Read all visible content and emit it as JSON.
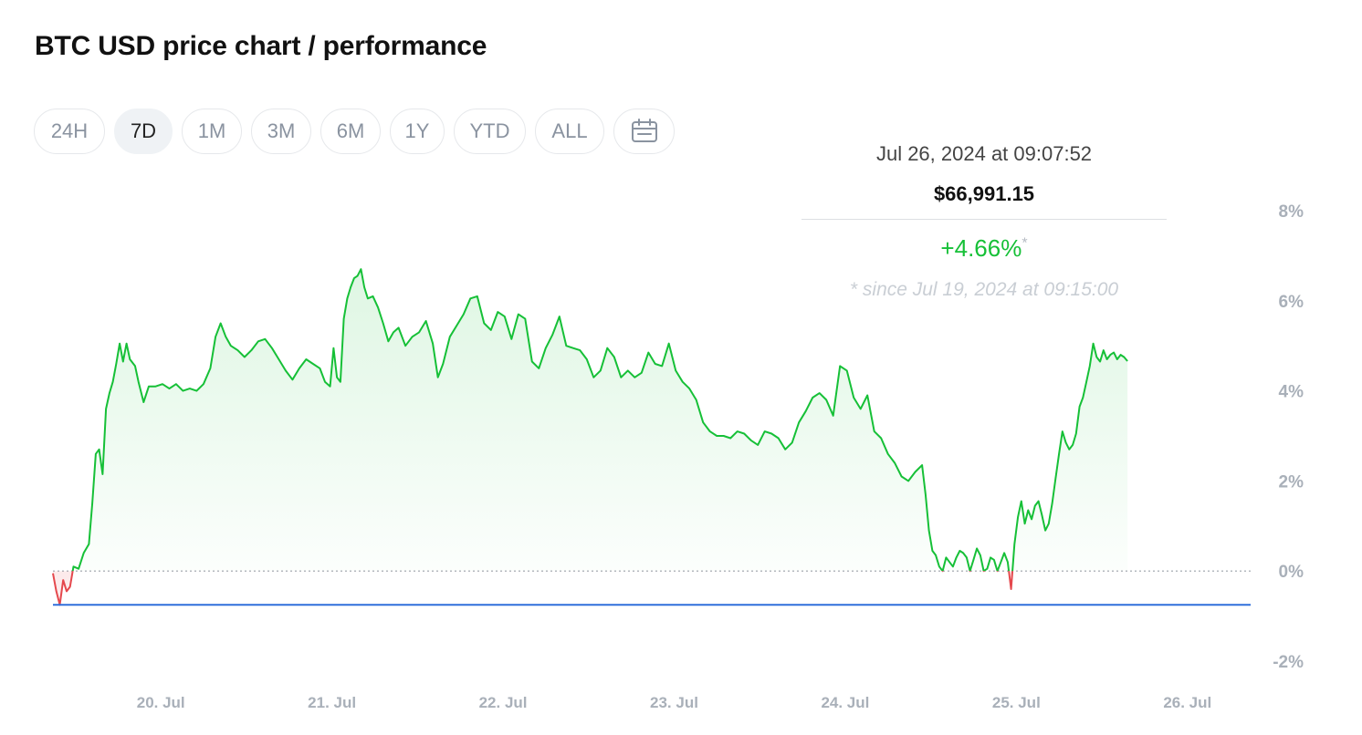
{
  "page": {
    "title": "BTC USD price chart / performance"
  },
  "range_buttons": [
    {
      "label": "24H",
      "active": false
    },
    {
      "label": "7D",
      "active": true
    },
    {
      "label": "1M",
      "active": false
    },
    {
      "label": "3M",
      "active": false
    },
    {
      "label": "6M",
      "active": false
    },
    {
      "label": "1Y",
      "active": false
    },
    {
      "label": "YTD",
      "active": false
    },
    {
      "label": "ALL",
      "active": false
    }
  ],
  "calendar_icon": "calendar-icon",
  "tooltip": {
    "date": "Jul 26, 2024 at 09:07:52",
    "price": "$66,991.15",
    "change": "+4.66%",
    "change_marker": "*",
    "since": "* since Jul 19, 2024 at 09:15:00"
  },
  "colors": {
    "up": "#16c037",
    "down": "#e5484d",
    "baseline": "#2f6fdb",
    "active_bg": "#eff2f5"
  },
  "chart_data": {
    "type": "line",
    "title": "BTC USD price chart / performance",
    "y_unit": "%",
    "ylim": [
      -2,
      8
    ],
    "y_ticks": [
      {
        "value": 8,
        "label": "8%"
      },
      {
        "value": 6,
        "label": "6%"
      },
      {
        "value": 4,
        "label": "4%"
      },
      {
        "value": 2,
        "label": "2%"
      },
      {
        "value": 0,
        "label": "0%"
      },
      {
        "value": -2,
        "label": "-2%"
      }
    ],
    "x_ticks": [
      "20. Jul",
      "21. Jul",
      "22. Jul",
      "23. Jul",
      "24. Jul",
      "25. Jul",
      "26. Jul"
    ],
    "xlim_days": [
      19.38,
      26.38
    ],
    "baseline_value": -0.75,
    "series": [
      {
        "values": [
          [
            19.38,
            -0.05
          ],
          [
            19.4,
            -0.45
          ],
          [
            19.42,
            -0.75
          ],
          [
            19.44,
            -0.2
          ],
          [
            19.46,
            -0.45
          ],
          [
            19.48,
            -0.35
          ],
          [
            19.5,
            0.1
          ],
          [
            19.53,
            0.05
          ],
          [
            19.56,
            0.4
          ],
          [
            19.59,
            0.6
          ],
          [
            19.61,
            1.5
          ],
          [
            19.63,
            2.6
          ],
          [
            19.65,
            2.7
          ],
          [
            19.67,
            2.15
          ],
          [
            19.69,
            3.6
          ],
          [
            19.71,
            3.95
          ],
          [
            19.73,
            4.2
          ],
          [
            19.75,
            4.6
          ],
          [
            19.77,
            5.05
          ],
          [
            19.79,
            4.65
          ],
          [
            19.81,
            5.05
          ],
          [
            19.83,
            4.7
          ],
          [
            19.86,
            4.55
          ],
          [
            19.88,
            4.2
          ],
          [
            19.91,
            3.75
          ],
          [
            19.94,
            4.1
          ],
          [
            19.98,
            4.1
          ],
          [
            20.02,
            4.15
          ],
          [
            20.06,
            4.05
          ],
          [
            20.1,
            4.15
          ],
          [
            20.14,
            4.0
          ],
          [
            20.18,
            4.05
          ],
          [
            20.22,
            4.0
          ],
          [
            20.26,
            4.15
          ],
          [
            20.3,
            4.5
          ],
          [
            20.33,
            5.2
          ],
          [
            20.36,
            5.5
          ],
          [
            20.39,
            5.2
          ],
          [
            20.42,
            5.0
          ],
          [
            20.46,
            4.9
          ],
          [
            20.5,
            4.75
          ],
          [
            20.54,
            4.9
          ],
          [
            20.58,
            5.1
          ],
          [
            20.62,
            5.15
          ],
          [
            20.66,
            4.95
          ],
          [
            20.7,
            4.7
          ],
          [
            20.74,
            4.45
          ],
          [
            20.78,
            4.25
          ],
          [
            20.82,
            4.5
          ],
          [
            20.86,
            4.7
          ],
          [
            20.9,
            4.6
          ],
          [
            20.94,
            4.5
          ],
          [
            20.97,
            4.2
          ],
          [
            21.0,
            4.1
          ],
          [
            21.02,
            4.95
          ],
          [
            21.04,
            4.3
          ],
          [
            21.06,
            4.2
          ],
          [
            21.08,
            5.6
          ],
          [
            21.1,
            6.05
          ],
          [
            21.12,
            6.3
          ],
          [
            21.14,
            6.5
          ],
          [
            21.16,
            6.55
          ],
          [
            21.18,
            6.7
          ],
          [
            21.2,
            6.3
          ],
          [
            21.22,
            6.05
          ],
          [
            21.25,
            6.1
          ],
          [
            21.28,
            5.85
          ],
          [
            21.31,
            5.5
          ],
          [
            21.34,
            5.1
          ],
          [
            21.37,
            5.3
          ],
          [
            21.4,
            5.4
          ],
          [
            21.44,
            5.0
          ],
          [
            21.48,
            5.2
          ],
          [
            21.52,
            5.3
          ],
          [
            21.56,
            5.55
          ],
          [
            21.6,
            5.05
          ],
          [
            21.63,
            4.3
          ],
          [
            21.66,
            4.6
          ],
          [
            21.7,
            5.2
          ],
          [
            21.74,
            5.45
          ],
          [
            21.78,
            5.7
          ],
          [
            21.82,
            6.05
          ],
          [
            21.86,
            6.1
          ],
          [
            21.9,
            5.5
          ],
          [
            21.94,
            5.35
          ],
          [
            21.98,
            5.75
          ],
          [
            22.02,
            5.65
          ],
          [
            22.06,
            5.15
          ],
          [
            22.1,
            5.7
          ],
          [
            22.14,
            5.6
          ],
          [
            22.18,
            4.65
          ],
          [
            22.22,
            4.5
          ],
          [
            22.26,
            4.95
          ],
          [
            22.3,
            5.25
          ],
          [
            22.34,
            5.65
          ],
          [
            22.38,
            5.0
          ],
          [
            22.42,
            4.95
          ],
          [
            22.46,
            4.9
          ],
          [
            22.5,
            4.7
          ],
          [
            22.54,
            4.3
          ],
          [
            22.58,
            4.45
          ],
          [
            22.62,
            4.95
          ],
          [
            22.66,
            4.75
          ],
          [
            22.7,
            4.3
          ],
          [
            22.74,
            4.45
          ],
          [
            22.78,
            4.3
          ],
          [
            22.82,
            4.4
          ],
          [
            22.86,
            4.85
          ],
          [
            22.9,
            4.6
          ],
          [
            22.94,
            4.55
          ],
          [
            22.98,
            5.05
          ],
          [
            23.02,
            4.45
          ],
          [
            23.06,
            4.2
          ],
          [
            23.1,
            4.05
          ],
          [
            23.14,
            3.8
          ],
          [
            23.18,
            3.3
          ],
          [
            23.22,
            3.1
          ],
          [
            23.26,
            3.0
          ],
          [
            23.3,
            3.0
          ],
          [
            23.34,
            2.95
          ],
          [
            23.38,
            3.1
          ],
          [
            23.42,
            3.05
          ],
          [
            23.46,
            2.9
          ],
          [
            23.5,
            2.8
          ],
          [
            23.54,
            3.1
          ],
          [
            23.58,
            3.05
          ],
          [
            23.62,
            2.95
          ],
          [
            23.66,
            2.7
          ],
          [
            23.7,
            2.85
          ],
          [
            23.74,
            3.3
          ],
          [
            23.78,
            3.55
          ],
          [
            23.82,
            3.85
          ],
          [
            23.86,
            3.95
          ],
          [
            23.9,
            3.8
          ],
          [
            23.94,
            3.45
          ],
          [
            23.98,
            4.55
          ],
          [
            24.02,
            4.45
          ],
          [
            24.06,
            3.85
          ],
          [
            24.1,
            3.6
          ],
          [
            24.14,
            3.9
          ],
          [
            24.18,
            3.1
          ],
          [
            24.22,
            2.95
          ],
          [
            24.26,
            2.6
          ],
          [
            24.3,
            2.4
          ],
          [
            24.34,
            2.1
          ],
          [
            24.38,
            2.0
          ],
          [
            24.42,
            2.2
          ],
          [
            24.46,
            2.35
          ],
          [
            24.48,
            1.7
          ],
          [
            24.5,
            0.9
          ],
          [
            24.52,
            0.45
          ],
          [
            24.54,
            0.35
          ],
          [
            24.56,
            0.1
          ],
          [
            24.58,
            0.0
          ],
          [
            24.6,
            0.3
          ],
          [
            24.62,
            0.2
          ],
          [
            24.64,
            0.1
          ],
          [
            24.66,
            0.3
          ],
          [
            24.68,
            0.45
          ],
          [
            24.7,
            0.4
          ],
          [
            24.72,
            0.3
          ],
          [
            24.74,
            0.0
          ],
          [
            24.76,
            0.25
          ],
          [
            24.78,
            0.5
          ],
          [
            24.8,
            0.35
          ],
          [
            24.82,
            0.0
          ],
          [
            24.84,
            0.05
          ],
          [
            24.86,
            0.3
          ],
          [
            24.88,
            0.25
          ],
          [
            24.9,
            0.0
          ],
          [
            24.92,
            0.2
          ],
          [
            24.94,
            0.4
          ],
          [
            24.96,
            0.2
          ],
          [
            24.98,
            -0.4
          ],
          [
            25.0,
            0.6
          ],
          [
            25.02,
            1.2
          ],
          [
            25.04,
            1.55
          ],
          [
            25.06,
            1.05
          ],
          [
            25.08,
            1.35
          ],
          [
            25.1,
            1.15
          ],
          [
            25.12,
            1.45
          ],
          [
            25.14,
            1.55
          ],
          [
            25.16,
            1.25
          ],
          [
            25.18,
            0.9
          ],
          [
            25.2,
            1.05
          ],
          [
            25.22,
            1.5
          ],
          [
            25.24,
            2.05
          ],
          [
            25.26,
            2.6
          ],
          [
            25.28,
            3.1
          ],
          [
            25.3,
            2.85
          ],
          [
            25.32,
            2.7
          ],
          [
            25.34,
            2.8
          ],
          [
            25.36,
            3.05
          ],
          [
            25.38,
            3.65
          ],
          [
            25.4,
            3.85
          ],
          [
            25.42,
            4.2
          ],
          [
            25.44,
            4.55
          ],
          [
            25.46,
            5.05
          ],
          [
            25.48,
            4.75
          ],
          [
            25.5,
            4.65
          ],
          [
            25.52,
            4.9
          ],
          [
            25.54,
            4.7
          ],
          [
            25.56,
            4.8
          ],
          [
            25.58,
            4.85
          ],
          [
            25.6,
            4.7
          ],
          [
            25.62,
            4.8
          ],
          [
            25.64,
            4.75
          ],
          [
            25.66,
            4.66
          ]
        ]
      }
    ]
  }
}
